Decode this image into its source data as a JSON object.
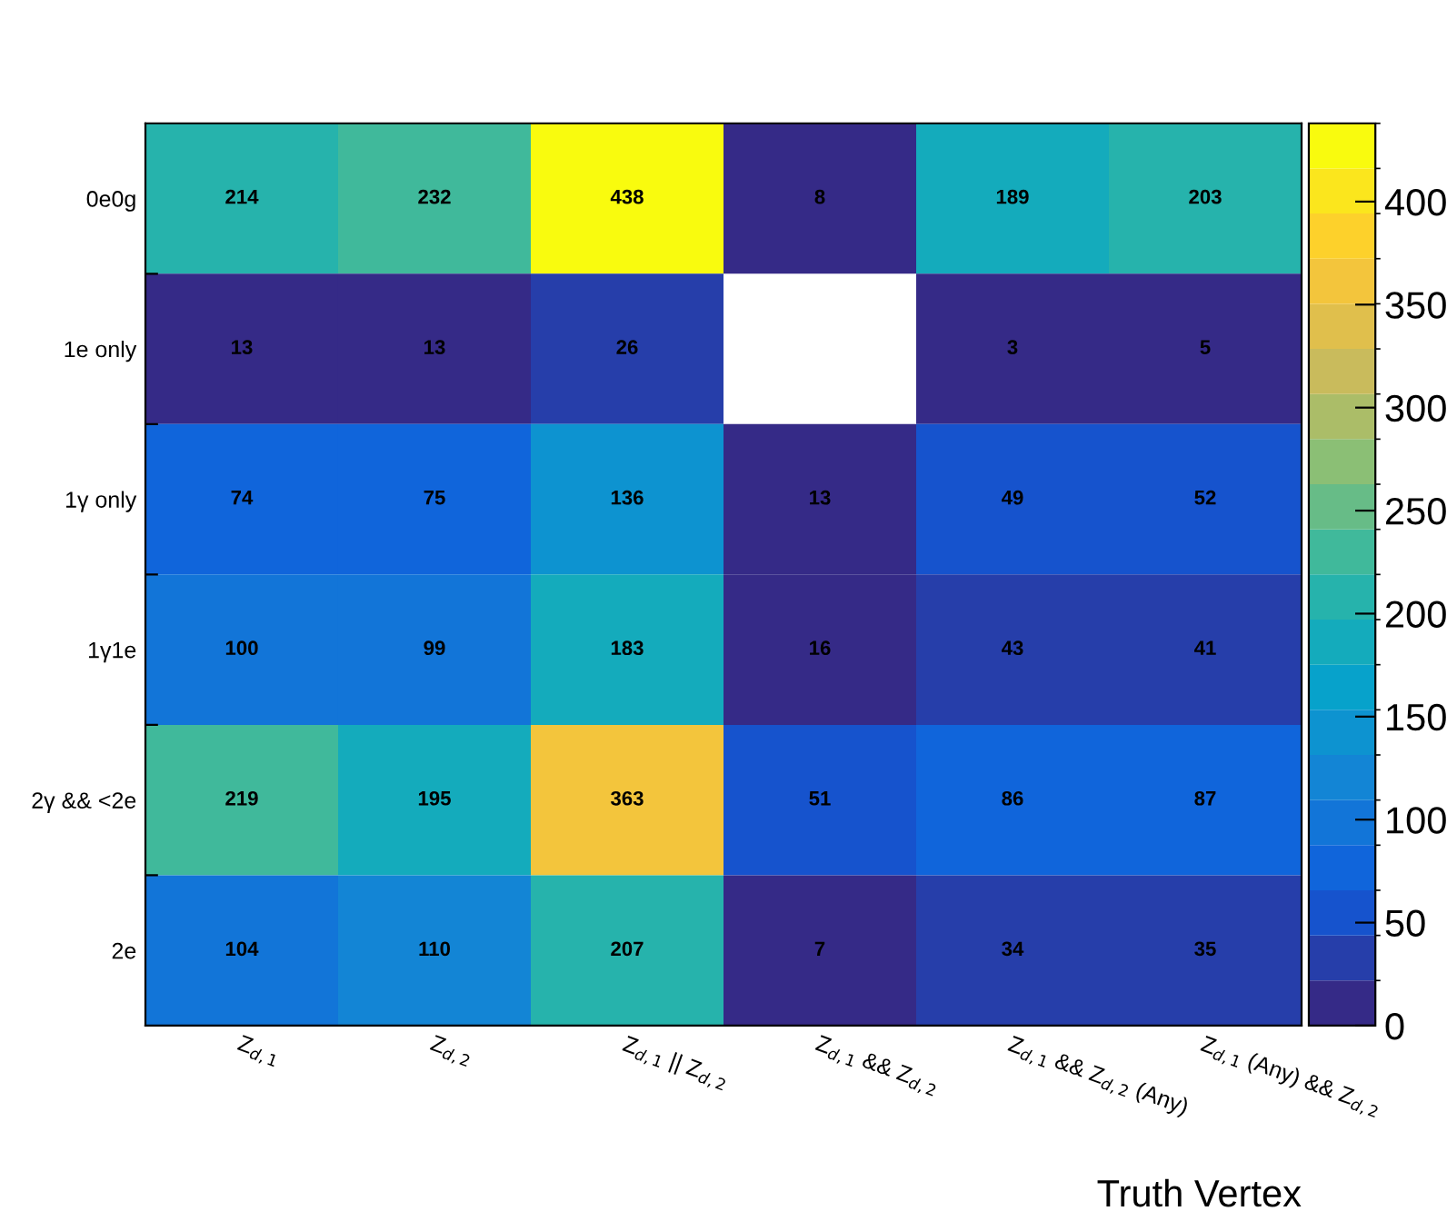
{
  "chart_data": {
    "type": "heatmap",
    "xlabel": "Truth Vertex",
    "categories": [
      "Z$_{d,1}$",
      "Z$_{d,2}$",
      "Z$_{d,1}$ || Z$_{d,2}$",
      "Z$_{d,1}$ && Z$_{d,2}$",
      "Z$_{d,1}$ && Z$_{d,2}$ (Any)",
      "Z$_{d,1}$ (Any) && Z$_{d,2}$"
    ],
    "y_categories": [
      "0e0g",
      "1e only",
      "1γ only",
      "1γ1e",
      "2γ && <2e",
      "2e"
    ],
    "cells": [
      [
        214,
        232,
        438,
        8,
        189,
        203
      ],
      [
        13,
        13,
        26,
        null,
        3,
        5
      ],
      [
        74,
        75,
        136,
        13,
        49,
        52
      ],
      [
        100,
        99,
        183,
        16,
        43,
        41
      ],
      [
        219,
        195,
        363,
        51,
        86,
        87
      ],
      [
        104,
        110,
        207,
        7,
        34,
        35
      ]
    ],
    "data_labels": true,
    "clim": [
      0,
      438
    ],
    "cticks": [
      0,
      50,
      100,
      150,
      200,
      250,
      300,
      350,
      400
    ]
  }
}
